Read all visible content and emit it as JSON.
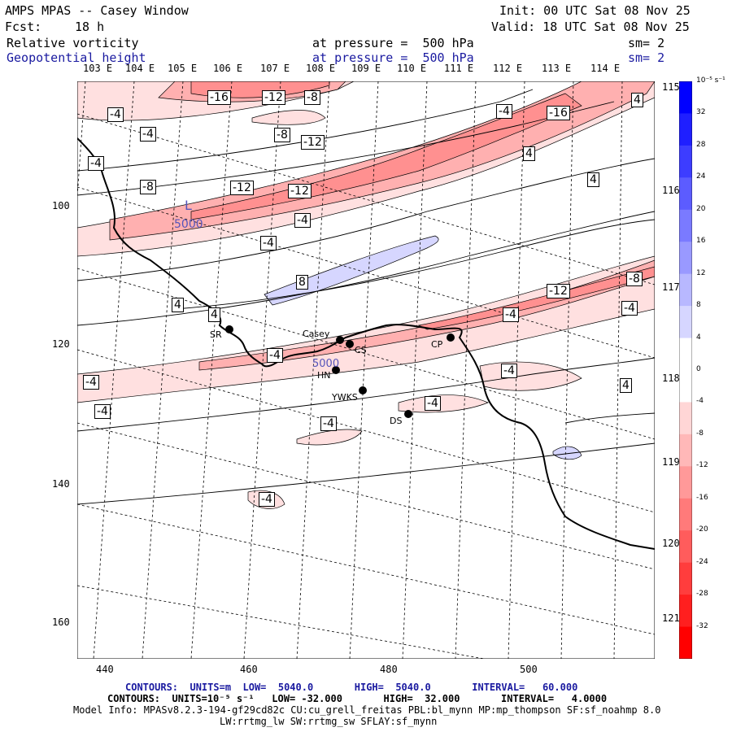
{
  "header": {
    "title": "AMPS MPAS -- Casey Window",
    "init": "Init: 00 UTC Sat 08 Nov 25",
    "fcst_label": "Fcst:",
    "fcst_value": "18 h",
    "valid": "Valid: 18 UTC Sat 08 Nov 25",
    "field1_name": "Relative vorticity",
    "field1_pressure": "at pressure =  500 hPa",
    "field1_sm": "sm= 2",
    "field2_name": "Geopotential height",
    "field2_pressure": "at pressure =  500 hPa",
    "field2_sm": "sm= 2"
  },
  "axes": {
    "top_lon_labels": [
      "103 E",
      "104 E",
      "105 E",
      "106 E",
      "107 E",
      "108 E",
      "109 E",
      "110 E",
      "111 E",
      "112 E",
      "113 E",
      "114 E"
    ],
    "right_lon_labels": [
      "115 E",
      "116 E",
      "117 E",
      "118 E",
      "119 E",
      "120 E",
      "121 E"
    ],
    "x_ticks": [
      "440",
      "460",
      "480",
      "500"
    ],
    "y_ticks": [
      "100",
      "120",
      "140",
      "160"
    ]
  },
  "colorbar": {
    "unit": "10⁻⁵ s⁻¹",
    "labels": [
      "32",
      "28",
      "24",
      "20",
      "16",
      "12",
      "8",
      "4",
      "0",
      "-4",
      "-8",
      "-12",
      "-16",
      "-20",
      "-24",
      "-28",
      "-32"
    ],
    "colors": [
      "#0000ff",
      "#1f1fff",
      "#3d3dff",
      "#5c5cff",
      "#7a7aff",
      "#9999ff",
      "#b8b8ff",
      "#d6d6ff",
      "#ffffff",
      "#ffffff",
      "#ffd6d6",
      "#ffb8b8",
      "#ff9999",
      "#ff7a7a",
      "#ff5c5c",
      "#ff3d3d",
      "#ff1f1f",
      "#ff0000"
    ]
  },
  "map": {
    "low_marker": "L",
    "low_value": "5000",
    "contour_labels": [
      "-16",
      "-12",
      "-8",
      "-4",
      "-16",
      "-4",
      "4",
      "-4",
      "-8",
      "-12",
      "4",
      "4",
      "-4",
      "-8",
      "-12",
      "-12",
      "-4",
      "-4",
      "8",
      "-12",
      "-8",
      "4",
      "4",
      "-4",
      "-4",
      "-4",
      "-4",
      "-4",
      "-4",
      "4",
      "-4",
      "-4",
      "-4"
    ],
    "stations": [
      {
        "name": "Casey"
      },
      {
        "name": "CS"
      },
      {
        "name": "HN"
      },
      {
        "name": "YWKS"
      },
      {
        "name": "DS"
      },
      {
        "name": "CP"
      },
      {
        "name": "SR"
      }
    ],
    "casey_height_label": "5000"
  },
  "footer": {
    "line1": "CONTOURS:  UNITS=m  LOW=  5040.0       HIGH=  5040.0       INTERVAL=   60.000",
    "line2": "CONTOURS:  UNITS=10⁻⁵ s⁻¹   LOW= -32.000       HIGH=  32.000       INTERVAL=   4.0000",
    "line3": "Model Info: MPASv8.2.3-194-gf29cd82c CU:cu_grell_freitas PBL:bl_mynn MP:mp_thompson SF:sf_noahmp 8.0",
    "line4": "LW:rrtmg_lw SW:rrtmg_sw SFLAY:sf_mynn"
  }
}
